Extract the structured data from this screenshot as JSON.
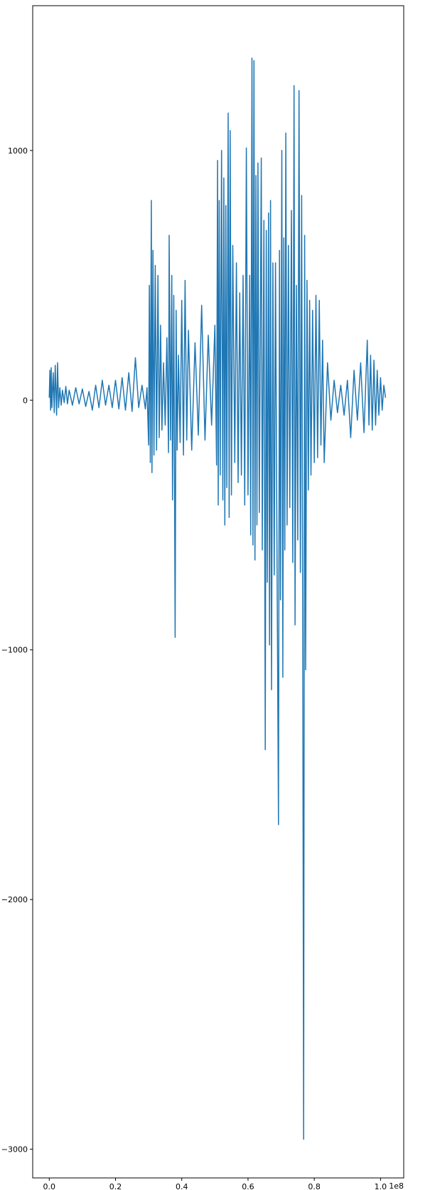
{
  "chart_data": {
    "type": "line",
    "title": "",
    "xlabel": "",
    "ylabel": "",
    "x_offset_label": "1e8",
    "xlim": [
      -0.05,
      1.07
    ],
    "ylim": [
      -3115,
      1580
    ],
    "x_ticks": [
      {
        "value": 0.0,
        "label": "0.0"
      },
      {
        "value": 0.2,
        "label": "0.2"
      },
      {
        "value": 0.4,
        "label": "0.4"
      },
      {
        "value": 0.6,
        "label": "0.6"
      },
      {
        "value": 0.8,
        "label": "0.8"
      },
      {
        "value": 1.0,
        "label": "1.0"
      }
    ],
    "y_ticks": [
      {
        "value": 1000,
        "label": "1000"
      },
      {
        "value": 0,
        "label": "0"
      },
      {
        "value": -1000,
        "label": "−1000"
      },
      {
        "value": -2000,
        "label": "−2000"
      },
      {
        "value": -3000,
        "label": "−3000"
      }
    ],
    "grid": false,
    "series": [
      {
        "color": "#1f77b4",
        "points": [
          [
            0.0,
            10
          ],
          [
            0.002,
            120
          ],
          [
            0.004,
            -40
          ],
          [
            0.006,
            130
          ],
          [
            0.008,
            -30
          ],
          [
            0.012,
            110
          ],
          [
            0.015,
            -50
          ],
          [
            0.018,
            140
          ],
          [
            0.022,
            -60
          ],
          [
            0.025,
            150
          ],
          [
            0.028,
            -30
          ],
          [
            0.032,
            50
          ],
          [
            0.036,
            -20
          ],
          [
            0.04,
            40
          ],
          [
            0.045,
            -10
          ],
          [
            0.05,
            55
          ],
          [
            0.055,
            -15
          ],
          [
            0.06,
            40
          ],
          [
            0.07,
            -20
          ],
          [
            0.08,
            50
          ],
          [
            0.09,
            -15
          ],
          [
            0.1,
            45
          ],
          [
            0.11,
            -25
          ],
          [
            0.12,
            35
          ],
          [
            0.13,
            -40
          ],
          [
            0.14,
            60
          ],
          [
            0.15,
            -30
          ],
          [
            0.16,
            80
          ],
          [
            0.17,
            -20
          ],
          [
            0.18,
            60
          ],
          [
            0.19,
            -30
          ],
          [
            0.2,
            80
          ],
          [
            0.21,
            -35
          ],
          [
            0.22,
            90
          ],
          [
            0.23,
            -40
          ],
          [
            0.24,
            110
          ],
          [
            0.25,
            -45
          ],
          [
            0.26,
            170
          ],
          [
            0.27,
            -30
          ],
          [
            0.28,
            60
          ],
          [
            0.29,
            -35
          ],
          [
            0.295,
            50
          ],
          [
            0.3,
            -180
          ],
          [
            0.302,
            460
          ],
          [
            0.305,
            -250
          ],
          [
            0.308,
            800
          ],
          [
            0.31,
            -290
          ],
          [
            0.313,
            600
          ],
          [
            0.316,
            -220
          ],
          [
            0.32,
            540
          ],
          [
            0.324,
            -200
          ],
          [
            0.328,
            500
          ],
          [
            0.332,
            -150
          ],
          [
            0.336,
            300
          ],
          [
            0.34,
            -120
          ],
          [
            0.345,
            150
          ],
          [
            0.35,
            -100
          ],
          [
            0.355,
            250
          ],
          [
            0.36,
            -210
          ],
          [
            0.362,
            660
          ],
          [
            0.366,
            -160
          ],
          [
            0.37,
            500
          ],
          [
            0.372,
            -400
          ],
          [
            0.376,
            420
          ],
          [
            0.38,
            -950
          ],
          [
            0.383,
            360
          ],
          [
            0.386,
            -200
          ],
          [
            0.39,
            180
          ],
          [
            0.395,
            -170
          ],
          [
            0.4,
            400
          ],
          [
            0.405,
            -220
          ],
          [
            0.41,
            480
          ],
          [
            0.415,
            -160
          ],
          [
            0.42,
            280
          ],
          [
            0.43,
            -200
          ],
          [
            0.44,
            230
          ],
          [
            0.45,
            -140
          ],
          [
            0.46,
            380
          ],
          [
            0.47,
            -160
          ],
          [
            0.48,
            260
          ],
          [
            0.49,
            -100
          ],
          [
            0.5,
            300
          ],
          [
            0.505,
            -260
          ],
          [
            0.508,
            960
          ],
          [
            0.51,
            -420
          ],
          [
            0.513,
            800
          ],
          [
            0.516,
            -300
          ],
          [
            0.52,
            1000
          ],
          [
            0.524,
            -400
          ],
          [
            0.527,
            890
          ],
          [
            0.53,
            -500
          ],
          [
            0.533,
            780
          ],
          [
            0.536,
            -350
          ],
          [
            0.54,
            1150
          ],
          [
            0.543,
            -470
          ],
          [
            0.546,
            1080
          ],
          [
            0.55,
            -380
          ],
          [
            0.554,
            620
          ],
          [
            0.56,
            -250
          ],
          [
            0.565,
            550
          ],
          [
            0.57,
            -330
          ],
          [
            0.575,
            430
          ],
          [
            0.58,
            -300
          ],
          [
            0.585,
            500
          ],
          [
            0.59,
            -420
          ],
          [
            0.595,
            1010
          ],
          [
            0.6,
            -380
          ],
          [
            0.605,
            500
          ],
          [
            0.608,
            -540
          ],
          [
            0.612,
            1370
          ],
          [
            0.615,
            -580
          ],
          [
            0.618,
            1360
          ],
          [
            0.621,
            -640
          ],
          [
            0.624,
            900
          ],
          [
            0.627,
            -500
          ],
          [
            0.63,
            950
          ],
          [
            0.634,
            -450
          ],
          [
            0.64,
            970
          ],
          [
            0.643,
            -600
          ],
          [
            0.648,
            720
          ],
          [
            0.652,
            -1400
          ],
          [
            0.655,
            680
          ],
          [
            0.658,
            -730
          ],
          [
            0.662,
            750
          ],
          [
            0.665,
            -980
          ],
          [
            0.668,
            800
          ],
          [
            0.671,
            -1160
          ],
          [
            0.675,
            550
          ],
          [
            0.679,
            -700
          ],
          [
            0.683,
            550
          ],
          [
            0.687,
            -500
          ],
          [
            0.692,
            -1700
          ],
          [
            0.695,
            600
          ],
          [
            0.698,
            -800
          ],
          [
            0.702,
            1000
          ],
          [
            0.705,
            -1110
          ],
          [
            0.708,
            650
          ],
          [
            0.711,
            -600
          ],
          [
            0.714,
            1070
          ],
          [
            0.718,
            -500
          ],
          [
            0.722,
            620
          ],
          [
            0.726,
            -430
          ],
          [
            0.731,
            760
          ],
          [
            0.735,
            -650
          ],
          [
            0.739,
            1260
          ],
          [
            0.742,
            -900
          ],
          [
            0.746,
            460
          ],
          [
            0.75,
            -560
          ],
          [
            0.754,
            1240
          ],
          [
            0.758,
            -690
          ],
          [
            0.762,
            820
          ],
          [
            0.765,
            -800
          ],
          [
            0.768,
            -2960
          ],
          [
            0.771,
            660
          ],
          [
            0.774,
            -1080
          ],
          [
            0.778,
            480
          ],
          [
            0.782,
            -360
          ],
          [
            0.786,
            400
          ],
          [
            0.79,
            -300
          ],
          [
            0.795,
            360
          ],
          [
            0.8,
            -250
          ],
          [
            0.805,
            420
          ],
          [
            0.81,
            -230
          ],
          [
            0.815,
            400
          ],
          [
            0.82,
            -180
          ],
          [
            0.825,
            240
          ],
          [
            0.83,
            -250
          ],
          [
            0.84,
            150
          ],
          [
            0.85,
            -80
          ],
          [
            0.86,
            80
          ],
          [
            0.87,
            -50
          ],
          [
            0.88,
            60
          ],
          [
            0.89,
            -60
          ],
          [
            0.9,
            80
          ],
          [
            0.91,
            -150
          ],
          [
            0.92,
            120
          ],
          [
            0.93,
            -80
          ],
          [
            0.94,
            150
          ],
          [
            0.95,
            -130
          ],
          [
            0.96,
            240
          ],
          [
            0.965,
            -100
          ],
          [
            0.97,
            180
          ],
          [
            0.975,
            -120
          ],
          [
            0.98,
            160
          ],
          [
            0.985,
            -100
          ],
          [
            0.99,
            120
          ],
          [
            0.995,
            -60
          ],
          [
            1.0,
            90
          ],
          [
            1.005,
            -40
          ],
          [
            1.01,
            60
          ],
          [
            1.015,
            10
          ]
        ]
      }
    ]
  }
}
